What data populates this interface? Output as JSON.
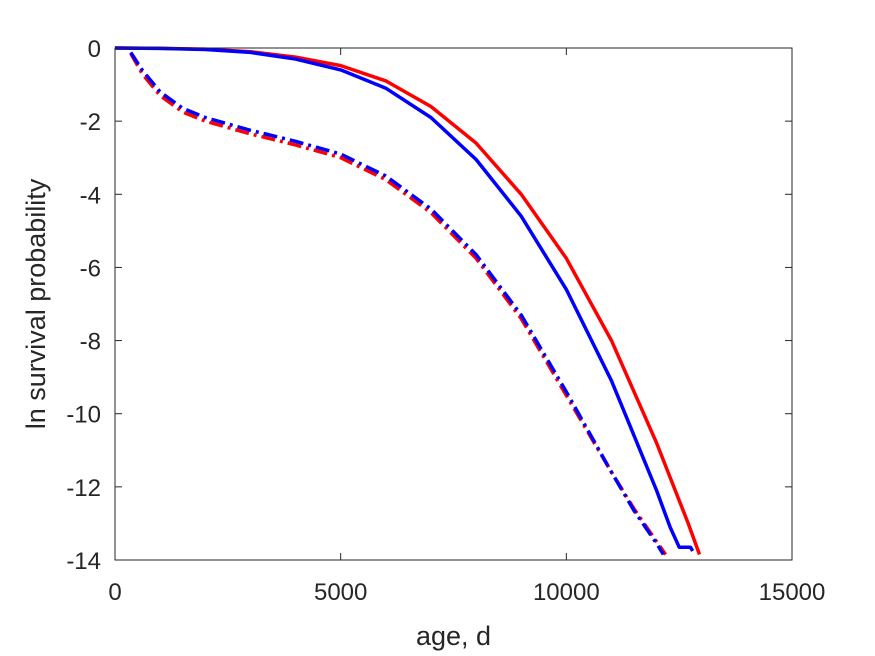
{
  "chart_data": {
    "type": "line",
    "title": "",
    "xlabel": "age, d",
    "ylabel": "ln survival probability",
    "xlim": [
      0,
      15000
    ],
    "ylim": [
      -14,
      0
    ],
    "xticks": [
      0,
      5000,
      10000,
      15000
    ],
    "yticks": [
      0,
      -2,
      -4,
      -6,
      -8,
      -10,
      -12,
      -14
    ],
    "grid": false,
    "legend": "none",
    "series": [
      {
        "color": "#ff0000",
        "style": "solid",
        "x": [
          0,
          1000,
          2000,
          3000,
          4000,
          5000,
          6000,
          7000,
          8000,
          9000,
          10000,
          11000,
          12000,
          12700,
          12950
        ],
        "y": [
          0,
          -0.01,
          -0.03,
          -0.1,
          -0.25,
          -0.48,
          -0.9,
          -1.6,
          -2.6,
          -4.0,
          -5.75,
          -8.0,
          -10.8,
          -13.0,
          -13.85
        ]
      },
      {
        "color": "#0000ff",
        "style": "solid",
        "x": [
          0,
          1000,
          2000,
          3000,
          4000,
          5000,
          6000,
          7000,
          8000,
          9000,
          10000,
          11000,
          12000,
          12300,
          12500,
          12750,
          12800
        ],
        "y": [
          0,
          -0.01,
          -0.04,
          -0.12,
          -0.3,
          -0.6,
          -1.1,
          -1.9,
          -3.05,
          -4.6,
          -6.6,
          -9.1,
          -12.1,
          -13.1,
          -13.65,
          -13.65,
          -13.75
        ]
      },
      {
        "color": "#ff0000",
        "style": "dashdot",
        "x": [
          350,
          600,
          1000,
          1500,
          2000,
          3000,
          4000,
          5000,
          6000,
          7000,
          8000,
          9000,
          10000,
          11000,
          11500,
          12000,
          12200
        ],
        "y": [
          -0.15,
          -0.7,
          -1.3,
          -1.75,
          -2.0,
          -2.35,
          -2.65,
          -3.0,
          -3.6,
          -4.5,
          -5.75,
          -7.4,
          -9.5,
          -11.6,
          -12.6,
          -13.5,
          -13.85
        ]
      },
      {
        "color": "#0000ff",
        "style": "dashdot",
        "x": [
          350,
          600,
          1000,
          1500,
          2000,
          3000,
          4000,
          5000,
          6000,
          7000,
          8000,
          9000,
          10000,
          11000,
          11500,
          12000,
          12150
        ],
        "y": [
          -0.12,
          -0.6,
          -1.2,
          -1.65,
          -1.9,
          -2.25,
          -2.55,
          -2.9,
          -3.5,
          -4.4,
          -5.65,
          -7.3,
          -9.4,
          -11.6,
          -12.65,
          -13.55,
          -13.85
        ]
      }
    ]
  }
}
